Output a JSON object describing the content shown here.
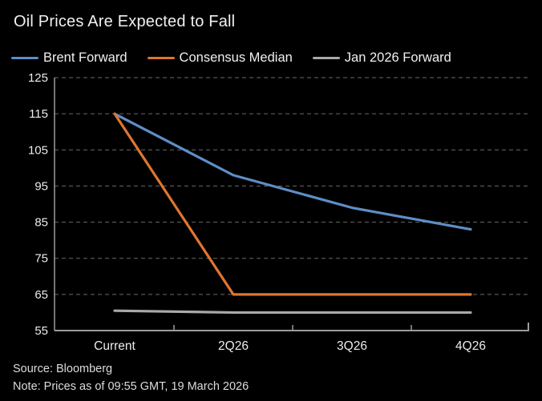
{
  "title": "Oil Prices Are Expected to Fall",
  "footer": {
    "source": "Source: Bloomberg",
    "note": "Note: Prices as of 09:55 GMT, 19 March 2026"
  },
  "colors": {
    "background": "#000000",
    "title_text": "#f0f0f0",
    "axis_text": "#ececec",
    "gridline": "#6a6a6a",
    "axis_line": "#9c9c9c",
    "footer_text": "#dcdcdc"
  },
  "chart_data": {
    "type": "line",
    "title": "Oil Prices Are Expected to Fall",
    "categories": [
      "Current",
      "2Q26",
      "3Q26",
      "4Q26"
    ],
    "series": [
      {
        "name": "Brent Forward",
        "color": "#5e8ec7",
        "values": [
          115,
          98,
          89,
          83
        ]
      },
      {
        "name": "Consensus Median",
        "color": "#e0762f",
        "values": [
          115,
          65,
          65,
          65
        ]
      },
      {
        "name": "Jan 2026 Forward",
        "color": "#a9a9a9",
        "values": [
          60.5,
          60,
          60,
          60
        ]
      }
    ],
    "xlabel": "",
    "ylabel": "",
    "ylim": [
      55,
      125
    ],
    "yticks": [
      55,
      65,
      75,
      85,
      95,
      105,
      115,
      125
    ],
    "grid": "horizontal-dashed",
    "legend_position": "top"
  }
}
